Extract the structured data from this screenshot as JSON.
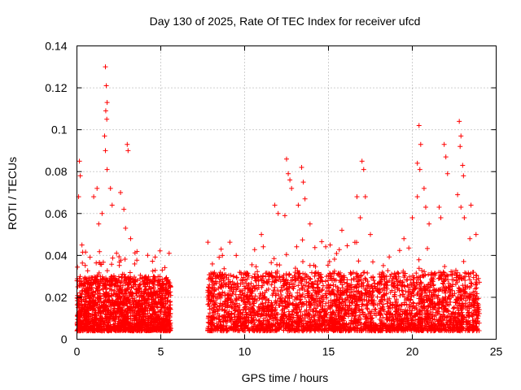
{
  "chart_data": {
    "type": "scatter",
    "title": "Day 130 of 2025, Rate Of TEC Index for receiver ufcd",
    "xlabel": "GPS time / hours",
    "ylabel": "ROTI / TECUs",
    "xlim": [
      0,
      25
    ],
    "ylim": [
      0,
      0.14
    ],
    "x_ticks": [
      0,
      5,
      10,
      15,
      20,
      25
    ],
    "x_tick_labels": [
      "0",
      "5",
      "10",
      "15",
      "20",
      "25"
    ],
    "y_ticks": [
      0,
      0.02,
      0.04,
      0.06,
      0.08,
      0.1,
      0.12,
      0.14
    ],
    "y_tick_labels": [
      "0",
      "0.02",
      "0.04",
      "0.06",
      "0.08",
      "0.1",
      "0.12",
      "0.14"
    ],
    "grid": true,
    "marker": "+",
    "color": "#ff0000",
    "series": [
      {
        "name": "ROTI",
        "segments": [
          {
            "x_start": 0.0,
            "x_end": 5.6,
            "y_low": 0.004,
            "y_high": 0.03
          },
          {
            "x_start": 7.8,
            "x_end": 24.0,
            "y_low": 0.004,
            "y_high": 0.032
          }
        ],
        "notable_points": [
          [
            0.1,
            0.068
          ],
          [
            0.15,
            0.085
          ],
          [
            0.2,
            0.078
          ],
          [
            0.3,
            0.045
          ],
          [
            1.0,
            0.068
          ],
          [
            1.2,
            0.072
          ],
          [
            1.3,
            0.055
          ],
          [
            1.5,
            0.06
          ],
          [
            1.7,
            0.13
          ],
          [
            1.75,
            0.121
          ],
          [
            1.8,
            0.113
          ],
          [
            1.72,
            0.109
          ],
          [
            1.78,
            0.105
          ],
          [
            1.65,
            0.097
          ],
          [
            1.7,
            0.09
          ],
          [
            1.8,
            0.081
          ],
          [
            2.0,
            0.072
          ],
          [
            2.1,
            0.064
          ],
          [
            2.6,
            0.07
          ],
          [
            2.8,
            0.062
          ],
          [
            3.0,
            0.093
          ],
          [
            3.05,
            0.09
          ],
          [
            2.9,
            0.053
          ],
          [
            3.2,
            0.048
          ],
          [
            5.5,
            0.041
          ],
          [
            8.6,
            0.043
          ],
          [
            9.5,
            0.04
          ],
          [
            11.0,
            0.05
          ],
          [
            11.8,
            0.064
          ],
          [
            12.0,
            0.06
          ],
          [
            12.5,
            0.086
          ],
          [
            12.6,
            0.079
          ],
          [
            12.7,
            0.076
          ],
          [
            12.8,
            0.072
          ],
          [
            12.4,
            0.059
          ],
          [
            13.4,
            0.082
          ],
          [
            13.5,
            0.075
          ],
          [
            13.6,
            0.067
          ],
          [
            13.2,
            0.064
          ],
          [
            13.9,
            0.055
          ],
          [
            15.1,
            0.045
          ],
          [
            15.8,
            0.052
          ],
          [
            16.7,
            0.068
          ],
          [
            16.9,
            0.058
          ],
          [
            17.0,
            0.085
          ],
          [
            17.1,
            0.081
          ],
          [
            17.2,
            0.068
          ],
          [
            17.5,
            0.05
          ],
          [
            19.5,
            0.048
          ],
          [
            20.0,
            0.058
          ],
          [
            20.3,
            0.068
          ],
          [
            20.4,
            0.102
          ],
          [
            20.5,
            0.093
          ],
          [
            20.3,
            0.084
          ],
          [
            20.45,
            0.081
          ],
          [
            20.7,
            0.072
          ],
          [
            20.8,
            0.063
          ],
          [
            21.0,
            0.055
          ],
          [
            21.6,
            0.063
          ],
          [
            21.7,
            0.058
          ],
          [
            21.9,
            0.093
          ],
          [
            22.0,
            0.087
          ],
          [
            22.1,
            0.079
          ],
          [
            22.8,
            0.104
          ],
          [
            22.9,
            0.097
          ],
          [
            22.85,
            0.092
          ],
          [
            23.0,
            0.083
          ],
          [
            23.05,
            0.078
          ],
          [
            22.7,
            0.069
          ],
          [
            22.9,
            0.063
          ],
          [
            23.1,
            0.058
          ],
          [
            23.5,
            0.064
          ],
          [
            23.8,
            0.05
          ]
        ]
      }
    ]
  }
}
